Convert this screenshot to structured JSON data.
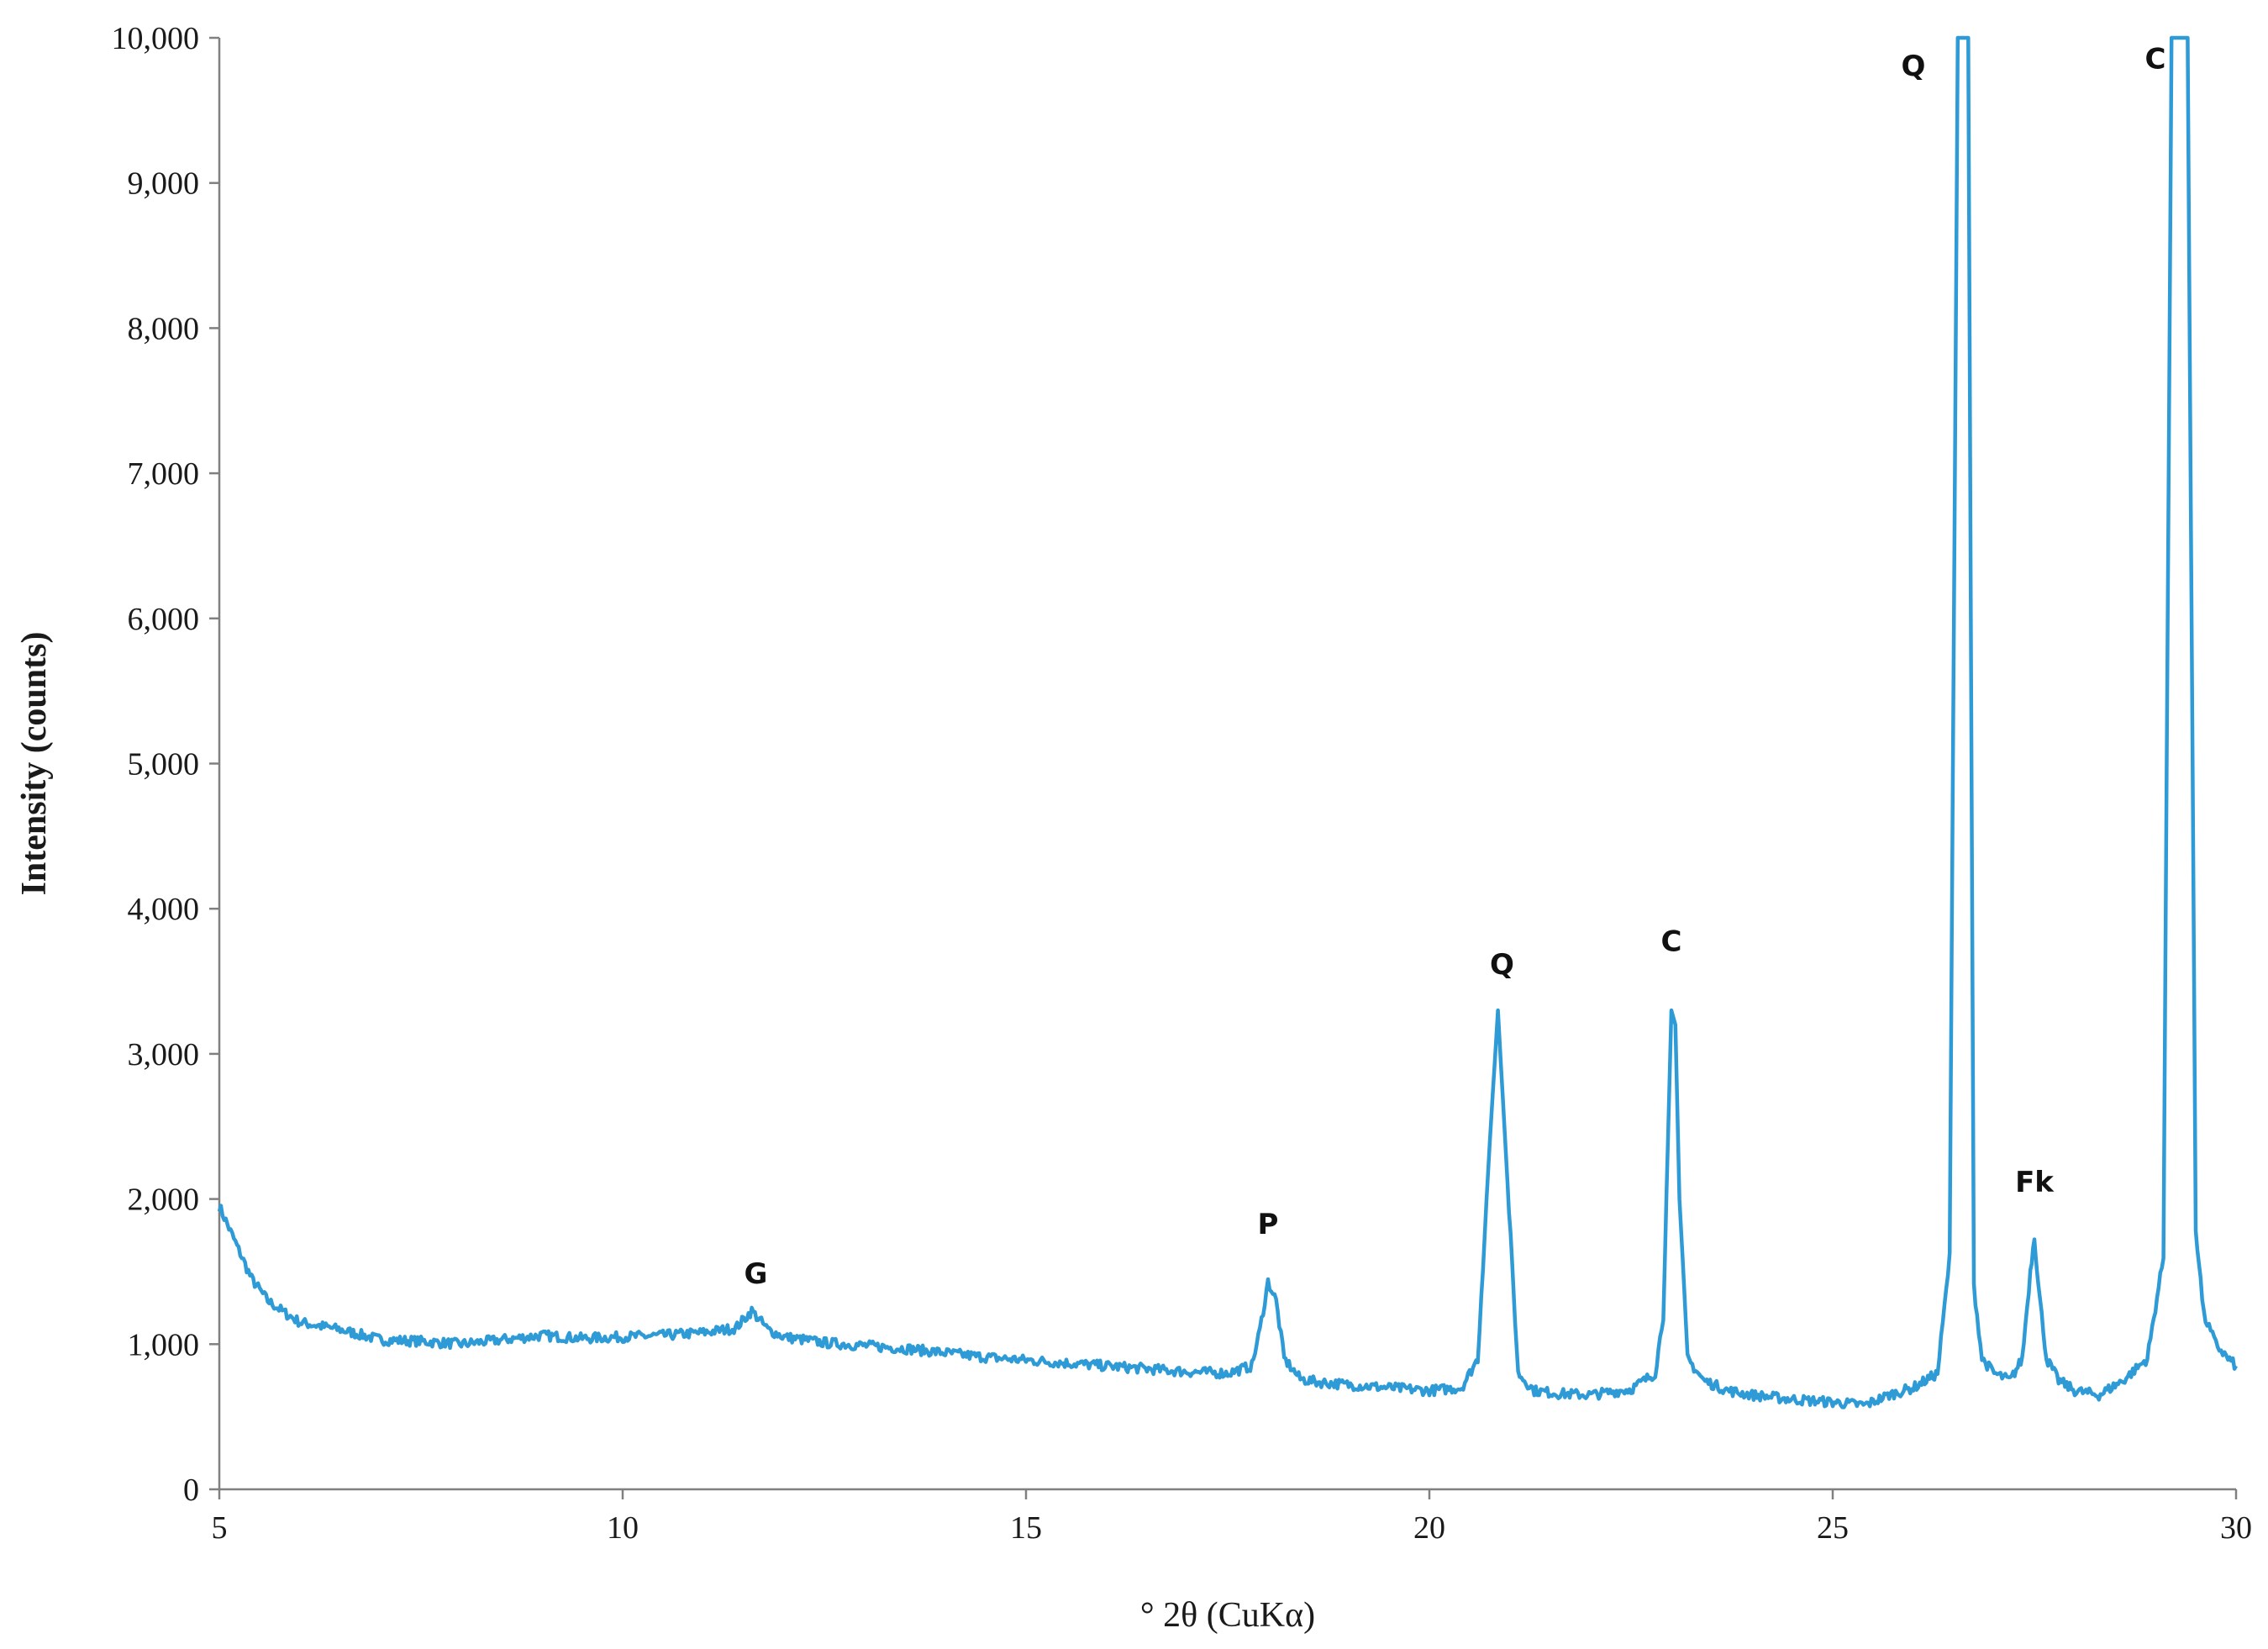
{
  "chart_data": {
    "type": "line",
    "title": "",
    "xlabel": "° 2θ (CuKα)",
    "ylabel": "Intensity (counts)",
    "xlim": [
      5,
      30
    ],
    "ylim": [
      0,
      10000
    ],
    "grid": false,
    "x_ticks": [
      "5",
      "10",
      "15",
      "20",
      "25",
      "30"
    ],
    "y_ticks": [
      "0",
      "1,000",
      "2,000",
      "3,000",
      "4,000",
      "5,000",
      "6,000",
      "7,000",
      "8,000",
      "9,000",
      "10,000"
    ],
    "line_color": "#2e9bd6",
    "series": [
      {
        "x": [
          5.0,
          5.2,
          5.4,
          5.6,
          5.8,
          6.0,
          6.5,
          7.0,
          7.5,
          8.0,
          8.5,
          9.0,
          9.5,
          10.0,
          10.5,
          11.0,
          11.4,
          11.6,
          11.8,
          12.0,
          12.5,
          13.0,
          13.5,
          14.0,
          14.5,
          15.0,
          15.5,
          16.0,
          16.5,
          17.0,
          17.5,
          17.8,
          17.9,
          18.0,
          18.1,
          18.2,
          18.4,
          18.6,
          19.0,
          19.5,
          20.0,
          20.4,
          20.6,
          20.75,
          20.85,
          20.95,
          21.1,
          21.3,
          21.6,
          22.0,
          22.5,
          22.8,
          22.9,
          23.0,
          23.05,
          23.1,
          23.2,
          23.4,
          23.7,
          24.0,
          24.5,
          25.0,
          25.4,
          25.7,
          26.0,
          26.3,
          26.45,
          26.55,
          26.62,
          26.68,
          26.75,
          26.85,
          27.0,
          27.2,
          27.35,
          27.45,
          27.5,
          27.55,
          27.65,
          27.8,
          28.0,
          28.3,
          28.6,
          28.9,
          29.1,
          29.2,
          29.3,
          29.4,
          29.5,
          29.6,
          29.75,
          29.9,
          30.0
        ],
        "y": [
          1950,
          1700,
          1450,
          1300,
          1220,
          1150,
          1100,
          1030,
          1020,
          1000,
          1030,
          1060,
          1040,
          1050,
          1060,
          1080,
          1110,
          1230,
          1100,
          1050,
          1010,
          990,
          970,
          940,
          910,
          890,
          870,
          850,
          830,
          810,
          800,
          850,
          1100,
          1430,
          1300,
          900,
          760,
          740,
          720,
          700,
          680,
          700,
          900,
          2400,
          3300,
          2300,
          800,
          680,
          660,
          650,
          690,
          800,
          1200,
          3300,
          3200,
          2000,
          900,
          750,
          680,
          650,
          620,
          600,
          580,
          650,
          700,
          800,
          1600,
          10000,
          10000,
          10000,
          1400,
          900,
          800,
          750,
          900,
          1500,
          1750,
          1400,
          900,
          750,
          680,
          650,
          750,
          900,
          1600,
          10000,
          10000,
          10000,
          1800,
          1200,
          1000,
          900,
          850
        ]
      }
    ],
    "annotations": [
      {
        "text": "G",
        "x": 11.65,
        "y": 1420
      },
      {
        "text": "P",
        "x": 18.0,
        "y": 1760
      },
      {
        "text": "Q",
        "x": 20.9,
        "y": 3550
      },
      {
        "text": "C",
        "x": 23.0,
        "y": 3710
      },
      {
        "text": "Q",
        "x": 26.0,
        "y": 9740
      },
      {
        "text": "Fk",
        "x": 27.5,
        "y": 2050
      },
      {
        "text": "C",
        "x": 29.0,
        "y": 9790
      }
    ]
  }
}
